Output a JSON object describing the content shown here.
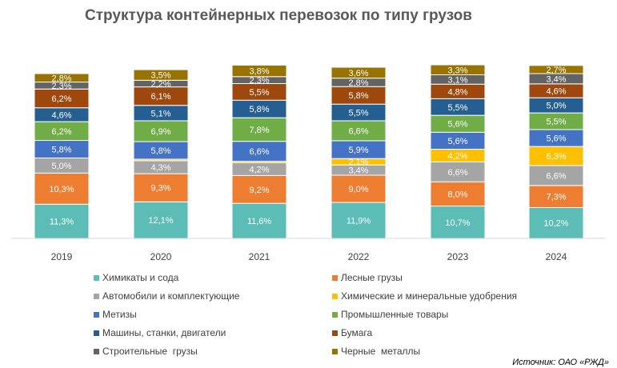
{
  "chart_data": {
    "type": "bar",
    "stacked": true,
    "title": "Структура контейнерных перевозок по типу грузов",
    "categories": [
      "2019",
      "2020",
      "2021",
      "2022",
      "2023",
      "2024"
    ],
    "series": [
      {
        "name": "Химикаты и сода",
        "color": "#5BBDB6",
        "values": [
          11.3,
          12.1,
          11.6,
          11.9,
          10.7,
          10.2
        ],
        "labels": [
          "11,3%",
          "12,1%",
          "11,6%",
          "11,9%",
          "10,7%",
          "10,2%"
        ]
      },
      {
        "name": "Лесные грузы",
        "color": "#ED7D31",
        "values": [
          10.3,
          9.3,
          9.2,
          9.0,
          8.0,
          7.3
        ],
        "labels": [
          "10,3%",
          "9,3%",
          "9,2%",
          "9,0%",
          "8,0%",
          "7,3%"
        ]
      },
      {
        "name": "Автомобили и комплектующие",
        "color": "#A5A5A5",
        "values": [
          5.0,
          4.3,
          4.2,
          3.4,
          6.6,
          6.6
        ],
        "labels": [
          "5,0%",
          "4,3%",
          "4,2%",
          "3,4%",
          "6,6%",
          "6,6%"
        ]
      },
      {
        "name": "Химические и минеральные удобрения",
        "color": "#FFC000",
        "values": [
          0.0,
          0.5,
          0.5,
          2.1,
          4.2,
          6.3
        ],
        "labels": [
          "",
          "",
          "",
          "2,1%",
          "4,2%",
          "6,3%"
        ]
      },
      {
        "name": "Метизы",
        "color": "#4472C4",
        "values": [
          5.8,
          5.8,
          6.6,
          5.9,
          5.6,
          5.6
        ],
        "labels": [
          "5,8%",
          "5,8%",
          "6,6%",
          "5,9%",
          "5,6%",
          "5,6%"
        ]
      },
      {
        "name": "Промышленные товары",
        "color": "#70AD47",
        "values": [
          6.2,
          6.9,
          7.8,
          6.6,
          5.6,
          5.5
        ],
        "labels": [
          "6,2%",
          "6,9%",
          "7,8%",
          "6,6%",
          "5,6%",
          "5,5%"
        ]
      },
      {
        "name": "Машины, станки, двигатели",
        "color": "#255E91",
        "values": [
          4.6,
          5.1,
          5.8,
          5.5,
          5.5,
          5.0
        ],
        "labels": [
          "4,6%",
          "5,1%",
          "5,8%",
          "5,5%",
          "5,5%",
          "5,0%"
        ]
      },
      {
        "name": "Бумага",
        "color": "#9E480E",
        "values": [
          6.2,
          6.1,
          5.5,
          5.8,
          4.8,
          4.6
        ],
        "labels": [
          "6,2%",
          "6,1%",
          "5,5%",
          "5,8%",
          "4,8%",
          "4,6%"
        ]
      },
      {
        "name": "Строительные  грузы",
        "color": "#636363",
        "values": [
          2.3,
          2.2,
          2.3,
          2.8,
          3.1,
          3.4
        ],
        "labels": [
          "2,3%",
          "2,2%",
          "2,3%",
          "2,8%",
          "3,1%",
          "3,4%"
        ]
      },
      {
        "name": "Черные  металлы",
        "color": "#997300",
        "values": [
          2.8,
          3.5,
          3.8,
          3.6,
          3.3,
          2.7
        ],
        "labels": [
          "2,8%",
          "3,5%",
          "3,8%",
          "3,6%",
          "3,3%",
          "2,7%"
        ]
      }
    ],
    "legend_position": "bottom",
    "grid": false
  },
  "source": "Источник: ОАО «РЖД»"
}
